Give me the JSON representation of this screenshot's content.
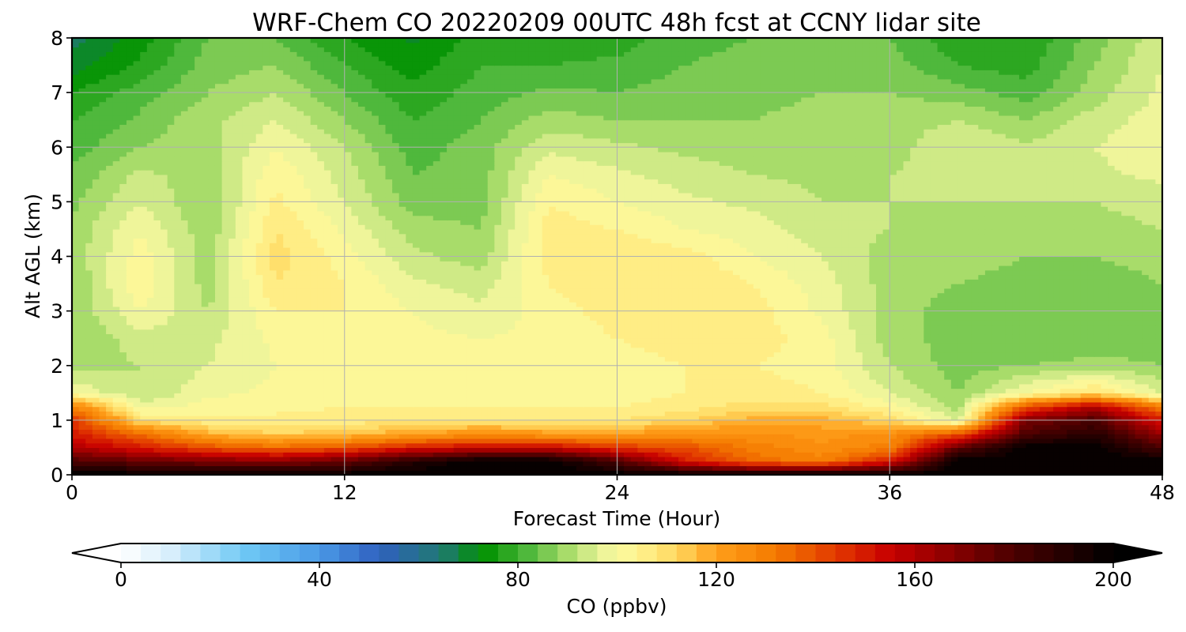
{
  "chart_data": {
    "type": "heatmap",
    "title": "WRF-Chem CO  20220209 00UTC 48h fcst at CCNY lidar site",
    "xlabel": "Forecast Time (Hour)",
    "ylabel": "Alt AGL (km)",
    "xlim": [
      0,
      48
    ],
    "ylim": [
      0,
      8
    ],
    "x_ticks": [
      "0",
      "12",
      "24",
      "36",
      "48"
    ],
    "y_ticks": [
      "0",
      "1",
      "2",
      "3",
      "4",
      "5",
      "6",
      "7",
      "8"
    ],
    "grid": true,
    "colorbar": {
      "label": "CO  (ppbv)",
      "range": [
        0,
        200
      ],
      "extend": "both",
      "ticks": [
        "0",
        "40",
        "80",
        "120",
        "160",
        "200"
      ],
      "stops": [
        {
          "v": 0,
          "c": "#ffffff"
        },
        {
          "v": 10,
          "c": "#d7eefc"
        },
        {
          "v": 25,
          "c": "#6ec8f5"
        },
        {
          "v": 40,
          "c": "#4a9ae6"
        },
        {
          "v": 52,
          "c": "#3060c0"
        },
        {
          "v": 65,
          "c": "#1f7a6e"
        },
        {
          "v": 73,
          "c": "#009100"
        },
        {
          "v": 82,
          "c": "#4fb83c"
        },
        {
          "v": 90,
          "c": "#a8dc6a"
        },
        {
          "v": 97,
          "c": "#ecf59b"
        },
        {
          "v": 103,
          "c": "#fff797"
        },
        {
          "v": 112,
          "c": "#ffd860"
        },
        {
          "v": 120,
          "c": "#ff9f1a"
        },
        {
          "v": 132,
          "c": "#f47a00"
        },
        {
          "v": 145,
          "c": "#e03400"
        },
        {
          "v": 155,
          "c": "#c80000"
        },
        {
          "v": 165,
          "c": "#960000"
        },
        {
          "v": 180,
          "c": "#4a0000"
        },
        {
          "v": 200,
          "c": "#000000"
        }
      ]
    },
    "times": [
      0,
      3,
      6,
      9,
      12,
      15,
      18,
      21,
      24,
      27,
      30,
      33,
      36,
      39,
      42,
      45,
      48
    ],
    "heights": [
      0,
      0.25,
      0.5,
      0.75,
      1,
      1.25,
      1.5,
      2,
      2.5,
      3,
      3.5,
      4,
      4.5,
      5,
      5.5,
      6,
      6.5,
      7,
      7.5,
      8
    ],
    "values": [
      [
        200,
        200,
        200,
        200,
        200,
        200,
        200,
        200,
        200,
        200,
        200,
        200,
        200,
        200,
        200,
        200,
        200
      ],
      [
        180,
        175,
        170,
        168,
        175,
        190,
        200,
        200,
        180,
        150,
        135,
        130,
        150,
        200,
        200,
        200,
        200
      ],
      [
        160,
        150,
        140,
        135,
        140,
        150,
        155,
        155,
        145,
        140,
        130,
        125,
        130,
        175,
        200,
        200,
        180
      ],
      [
        150,
        135,
        118,
        112,
        115,
        120,
        125,
        122,
        120,
        125,
        125,
        122,
        125,
        140,
        180,
        190,
        165
      ],
      [
        145,
        110,
        105,
        105,
        106,
        107,
        108,
        108,
        108,
        112,
        118,
        118,
        112,
        95,
        170,
        180,
        150
      ],
      [
        130,
        98,
        102,
        103,
        104,
        104,
        104,
        104,
        104,
        106,
        110,
        110,
        102,
        90,
        140,
        160,
        130
      ],
      [
        100,
        92,
        99,
        101,
        102,
        102,
        102,
        102,
        102,
        104,
        106,
        104,
        96,
        88,
        100,
        110,
        95
      ],
      [
        90,
        92,
        96,
        100,
        101,
        101,
        101,
        101,
        102,
        104,
        104,
        102,
        92,
        86,
        88,
        90,
        88
      ],
      [
        88,
        94,
        95,
        101,
        102,
        101,
        100,
        101,
        104,
        106,
        106,
        102,
        90,
        86,
        84,
        84,
        86
      ],
      [
        88,
        100,
        92,
        104,
        104,
        100,
        97,
        102,
        106,
        108,
        106,
        99,
        90,
        86,
        84,
        84,
        86
      ],
      [
        88,
        103,
        90,
        108,
        104,
        97,
        94,
        104,
        108,
        108,
        104,
        98,
        90,
        88,
        86,
        85,
        88
      ],
      [
        89,
        102,
        90,
        110,
        102,
        93,
        90,
        106,
        108,
        106,
        100,
        96,
        90,
        90,
        88,
        88,
        90
      ],
      [
        89,
        100,
        89,
        108,
        99,
        90,
        88,
        106,
        104,
        100,
        98,
        94,
        92,
        90,
        90,
        90,
        92
      ],
      [
        87,
        96,
        88,
        105,
        96,
        86,
        86,
        104,
        100,
        97,
        95,
        92,
        92,
        92,
        92,
        92,
        94
      ],
      [
        85,
        93,
        90,
        103,
        94,
        84,
        86,
        100,
        97,
        94,
        92,
        91,
        92,
        94,
        94,
        95,
        97
      ],
      [
        82,
        88,
        90,
        100,
        92,
        82,
        86,
        95,
        93,
        91,
        90,
        90,
        90,
        96,
        93,
        96,
        99
      ],
      [
        80,
        85,
        91,
        96,
        88,
        80,
        84,
        90,
        88,
        88,
        88,
        89,
        90,
        92,
        88,
        94,
        98
      ],
      [
        76,
        82,
        88,
        92,
        84,
        77,
        82,
        85,
        84,
        86,
        87,
        88,
        88,
        86,
        82,
        90,
        97
      ],
      [
        70,
        77,
        86,
        88,
        80,
        74,
        80,
        80,
        81,
        84,
        86,
        86,
        86,
        80,
        78,
        88,
        96
      ],
      [
        66,
        74,
        84,
        84,
        76,
        71,
        78,
        77,
        78,
        82,
        84,
        84,
        84,
        77,
        76,
        86,
        95
      ]
    ]
  }
}
